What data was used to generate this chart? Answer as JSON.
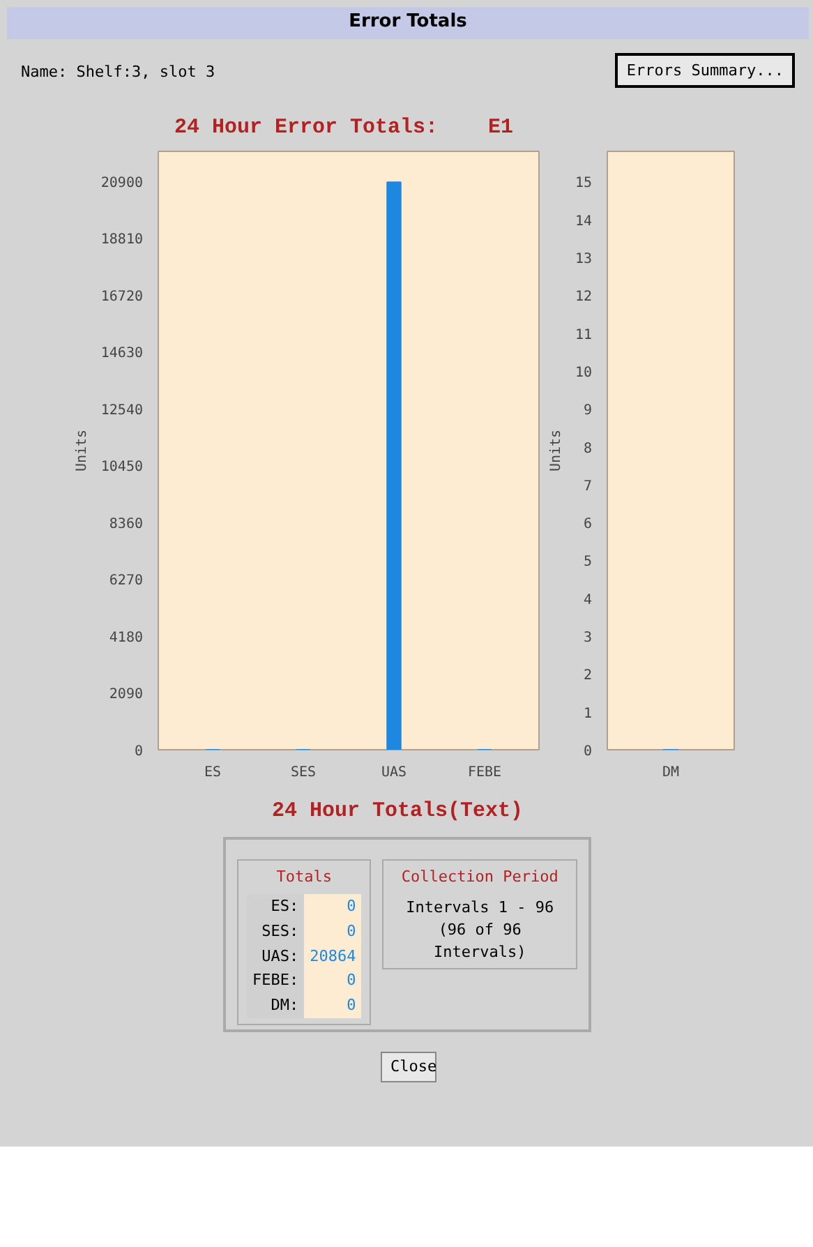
{
  "chart_data": [
    {
      "type": "bar",
      "title": "24 Hour Error Totals:    E1",
      "categories": [
        "ES",
        "SES",
        "UAS",
        "FEBE"
      ],
      "values": [
        0,
        0,
        20864,
        0
      ],
      "color": "#1e88e0",
      "ylabel": "Units",
      "ylim": [
        0,
        22000
      ],
      "yticks": [
        0,
        2090,
        4180,
        6270,
        8360,
        10450,
        12540,
        14630,
        16720,
        18810,
        20900
      ],
      "grid": false,
      "annotations": [
        "Error Totals",
        "Name:  Shelf:3, slot 3",
        "Errors Summary...",
        "24 Hour Totals(Text)",
        "Totals",
        "Collection Period",
        "Intervals 1 - 96",
        "(96 of 96 Intervals)",
        "Close",
        "ES:",
        "0",
        "SES:",
        "0",
        "UAS:",
        "20864",
        "FEBE:",
        "0",
        "DM:",
        "0"
      ]
    },
    {
      "type": "bar",
      "categories": [
        "DM"
      ],
      "values": [
        0
      ],
      "color": "#1e88e0",
      "ylabel": "Units",
      "ylim": [
        0,
        15.8
      ],
      "yticks": [
        0,
        1,
        2,
        3,
        4,
        5,
        6,
        7,
        8,
        9,
        10,
        11,
        12,
        13,
        14,
        15
      ],
      "grid": false
    }
  ]
}
